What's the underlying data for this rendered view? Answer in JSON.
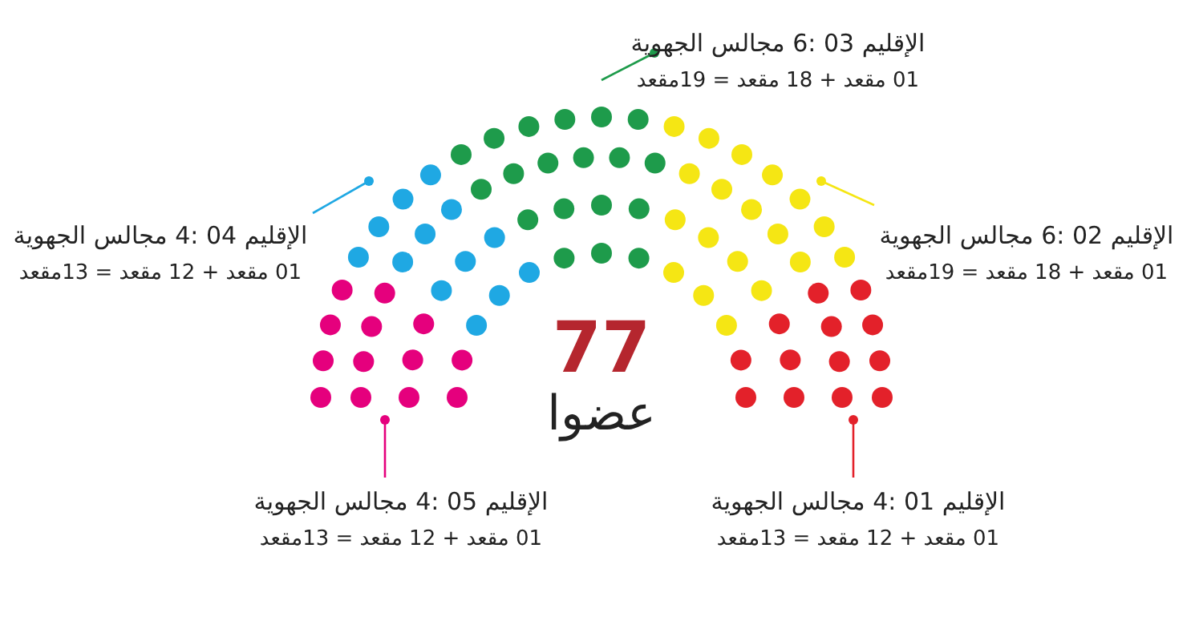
{
  "chart_data": {
    "type": "other",
    "title": "77",
    "subtitle": "عضوا",
    "categories": [
      "الإقليم 05 :4 مجالس الجهوية",
      "الإقليم 04 :4 مجالس الجهوية",
      "الإقليم 03 :6 مجالس الجهوية",
      "الإقليم 02 :6 مجالس الجهوية",
      "الإقليم 01 :4 مجالس الجهوية"
    ],
    "values": [
      13,
      13,
      19,
      19,
      13
    ],
    "colors": [
      "#e5007d",
      "#1fa8e3",
      "#1e9b4b",
      "#f5e614",
      "#e3212a"
    ],
    "value_labels": [
      "13مقعد",
      "13مقعد",
      "19مقعد",
      "19مقعد",
      "13مقعد"
    ],
    "annotations": [
      "01 مقعد + 12 مقعد =",
      "01 مقعد + 12 مقعد =",
      "01 مقعد + 18 مقعد =",
      "01 مقعد + 18 مقعد =",
      "01 مقعد + 12 مقعد ="
    ]
  }
}
